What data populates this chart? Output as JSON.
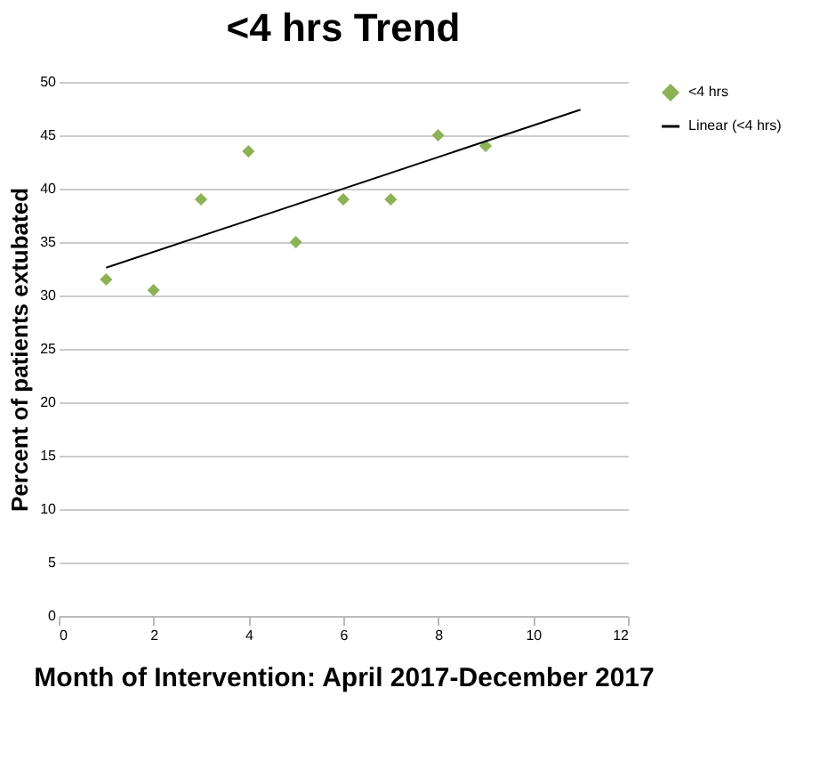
{
  "chart_data": {
    "type": "scatter",
    "title": "<4 hrs Trend",
    "xlabel": "Month of Intervention: April 2017-December 2017",
    "ylabel": "Percent of patients extubated",
    "series": [
      {
        "name": "<4 hrs",
        "color": "#8db255",
        "marker": "diamond",
        "x": [
          1,
          2,
          3,
          4,
          5,
          6,
          7,
          8,
          9
        ],
        "values": [
          31.5,
          30.5,
          39,
          43.5,
          35,
          39,
          39,
          45,
          44
        ]
      },
      {
        "name": "Linear (<4 hrs)",
        "type": "line",
        "color": "#000000",
        "line_style": "solid",
        "x": [
          1,
          11
        ],
        "values": [
          32.6,
          47.4
        ]
      }
    ],
    "xlim": [
      0,
      12
    ],
    "xticks": [
      0,
      2,
      4,
      6,
      8,
      10,
      12
    ],
    "ylim": [
      0,
      50
    ],
    "yticks": [
      0,
      5,
      10,
      15,
      20,
      25,
      30,
      35,
      40,
      45,
      50
    ],
    "grid": "y",
    "legend": "right"
  }
}
